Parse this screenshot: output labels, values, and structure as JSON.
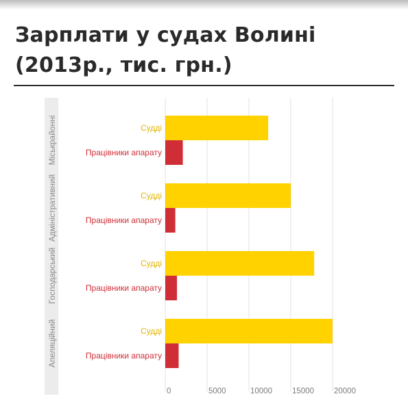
{
  "page": {
    "title_line1": "Зарплати у судах Волині",
    "title_line2": "(2013р., тис. грн.)"
  },
  "colors": {
    "judges": "#ffd200",
    "staff": "#cf2e36",
    "judges_label": "#e1b400",
    "staff_label": "#cf2e36",
    "grid": "#e2e2e2",
    "group_band": "#ececec"
  },
  "chart_data": {
    "type": "bar",
    "orientation": "horizontal",
    "title": "Зарплати у судах Волині (2013р., тис. грн.)",
    "categories": [
      "Міськрайонні",
      "Адміністративний",
      "Господарський",
      "Апеляційний"
    ],
    "series": [
      {
        "name": "Судді",
        "values": [
          12300,
          15000,
          17800,
          20000
        ]
      },
      {
        "name": "Працівники апарату",
        "values": [
          2100,
          1200,
          1400,
          1600
        ]
      }
    ],
    "xticks": [
      "0",
      "5000",
      "10000",
      "15000",
      "20000"
    ],
    "xlim": [
      0,
      23000
    ],
    "grid": true,
    "legend": "none"
  }
}
